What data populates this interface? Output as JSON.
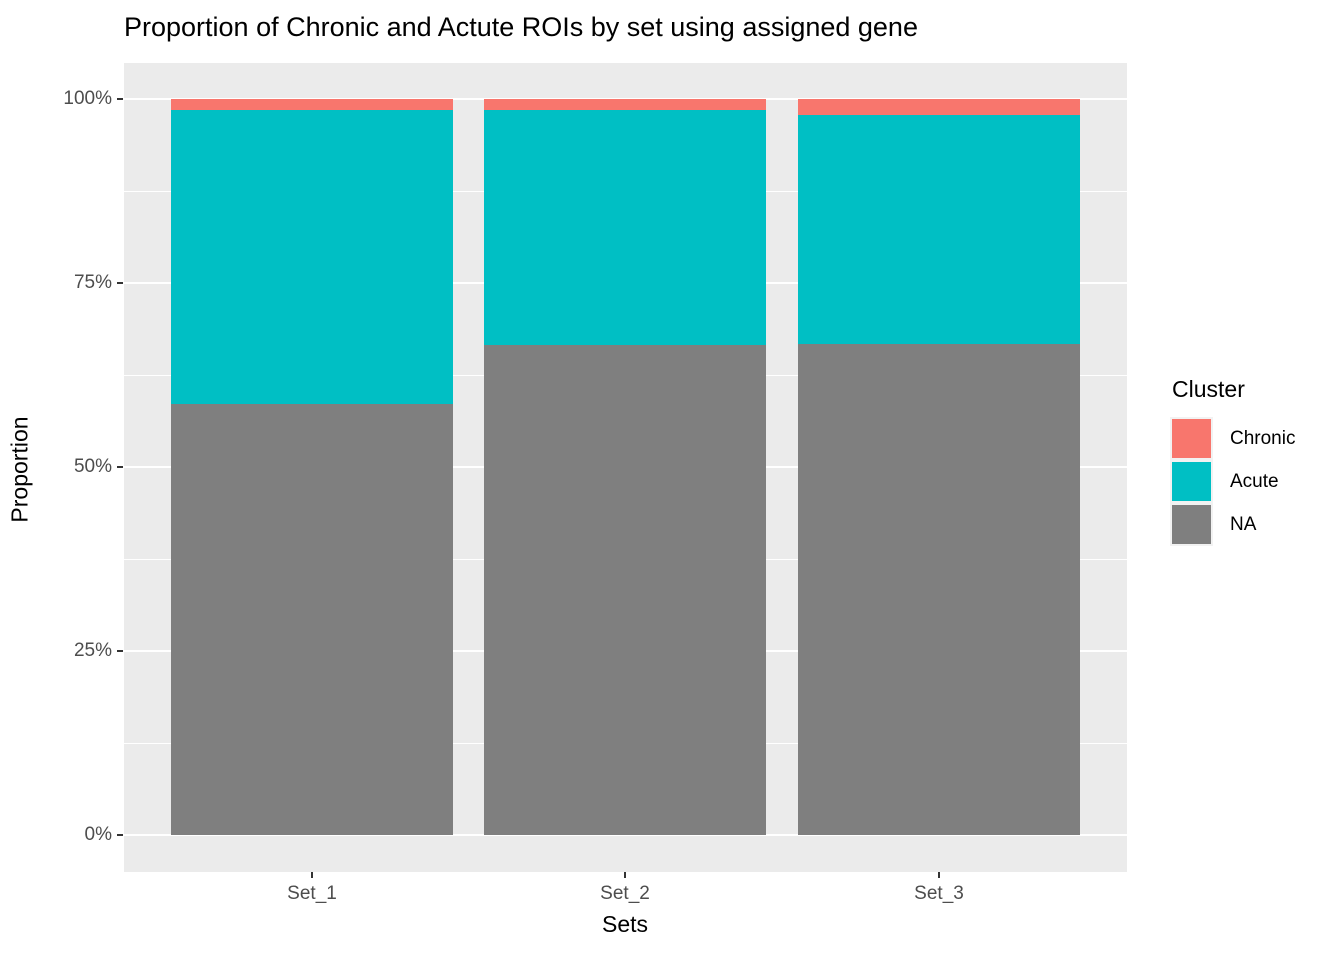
{
  "title": "Proportion of Chronic and Actute ROIs by set using assigned gene",
  "chart_data": {
    "type": "bar",
    "stacked": true,
    "percent_stacked": true,
    "title": "Proportion of Chronic and Actute ROIs by set using assigned gene",
    "xlabel": "Sets",
    "ylabel": "Proportion",
    "categories": [
      "Set_1",
      "Set_2",
      "Set_3"
    ],
    "series": [
      {
        "name": "Chronic",
        "color": "#F8766D",
        "values": [
          1.5,
          1.5,
          2.2
        ]
      },
      {
        "name": "Acute",
        "color": "#00BFC4",
        "values": [
          40.0,
          31.9,
          31.1
        ]
      },
      {
        "name": "NA",
        "color": "#7F7F7F",
        "values": [
          58.5,
          66.6,
          66.7
        ]
      }
    ],
    "ylim": [
      0,
      100
    ],
    "y_tick_labels": [
      "0%",
      "25%",
      "50%",
      "75%",
      "100%"
    ],
    "y_tick_values": [
      0,
      25,
      50,
      75,
      100
    ],
    "y_minor_values": [
      12.5,
      37.5,
      62.5,
      87.5
    ],
    "grid": true,
    "legend_position": "right",
    "legend_title": "Cluster",
    "colors": {
      "panel_background": "#EBEBEB",
      "gridline": "#FFFFFF",
      "tick_label": "#4D4D4D",
      "axis_title": "#000000",
      "title": "#000000",
      "legend_key_background": "#F2F2F2"
    }
  },
  "legend": {
    "title": "Cluster",
    "items": [
      {
        "label": "Chronic",
        "color": "#F8766D"
      },
      {
        "label": "Acute",
        "color": "#00BFC4"
      },
      {
        "label": "NA",
        "color": "#7F7F7F"
      }
    ]
  }
}
